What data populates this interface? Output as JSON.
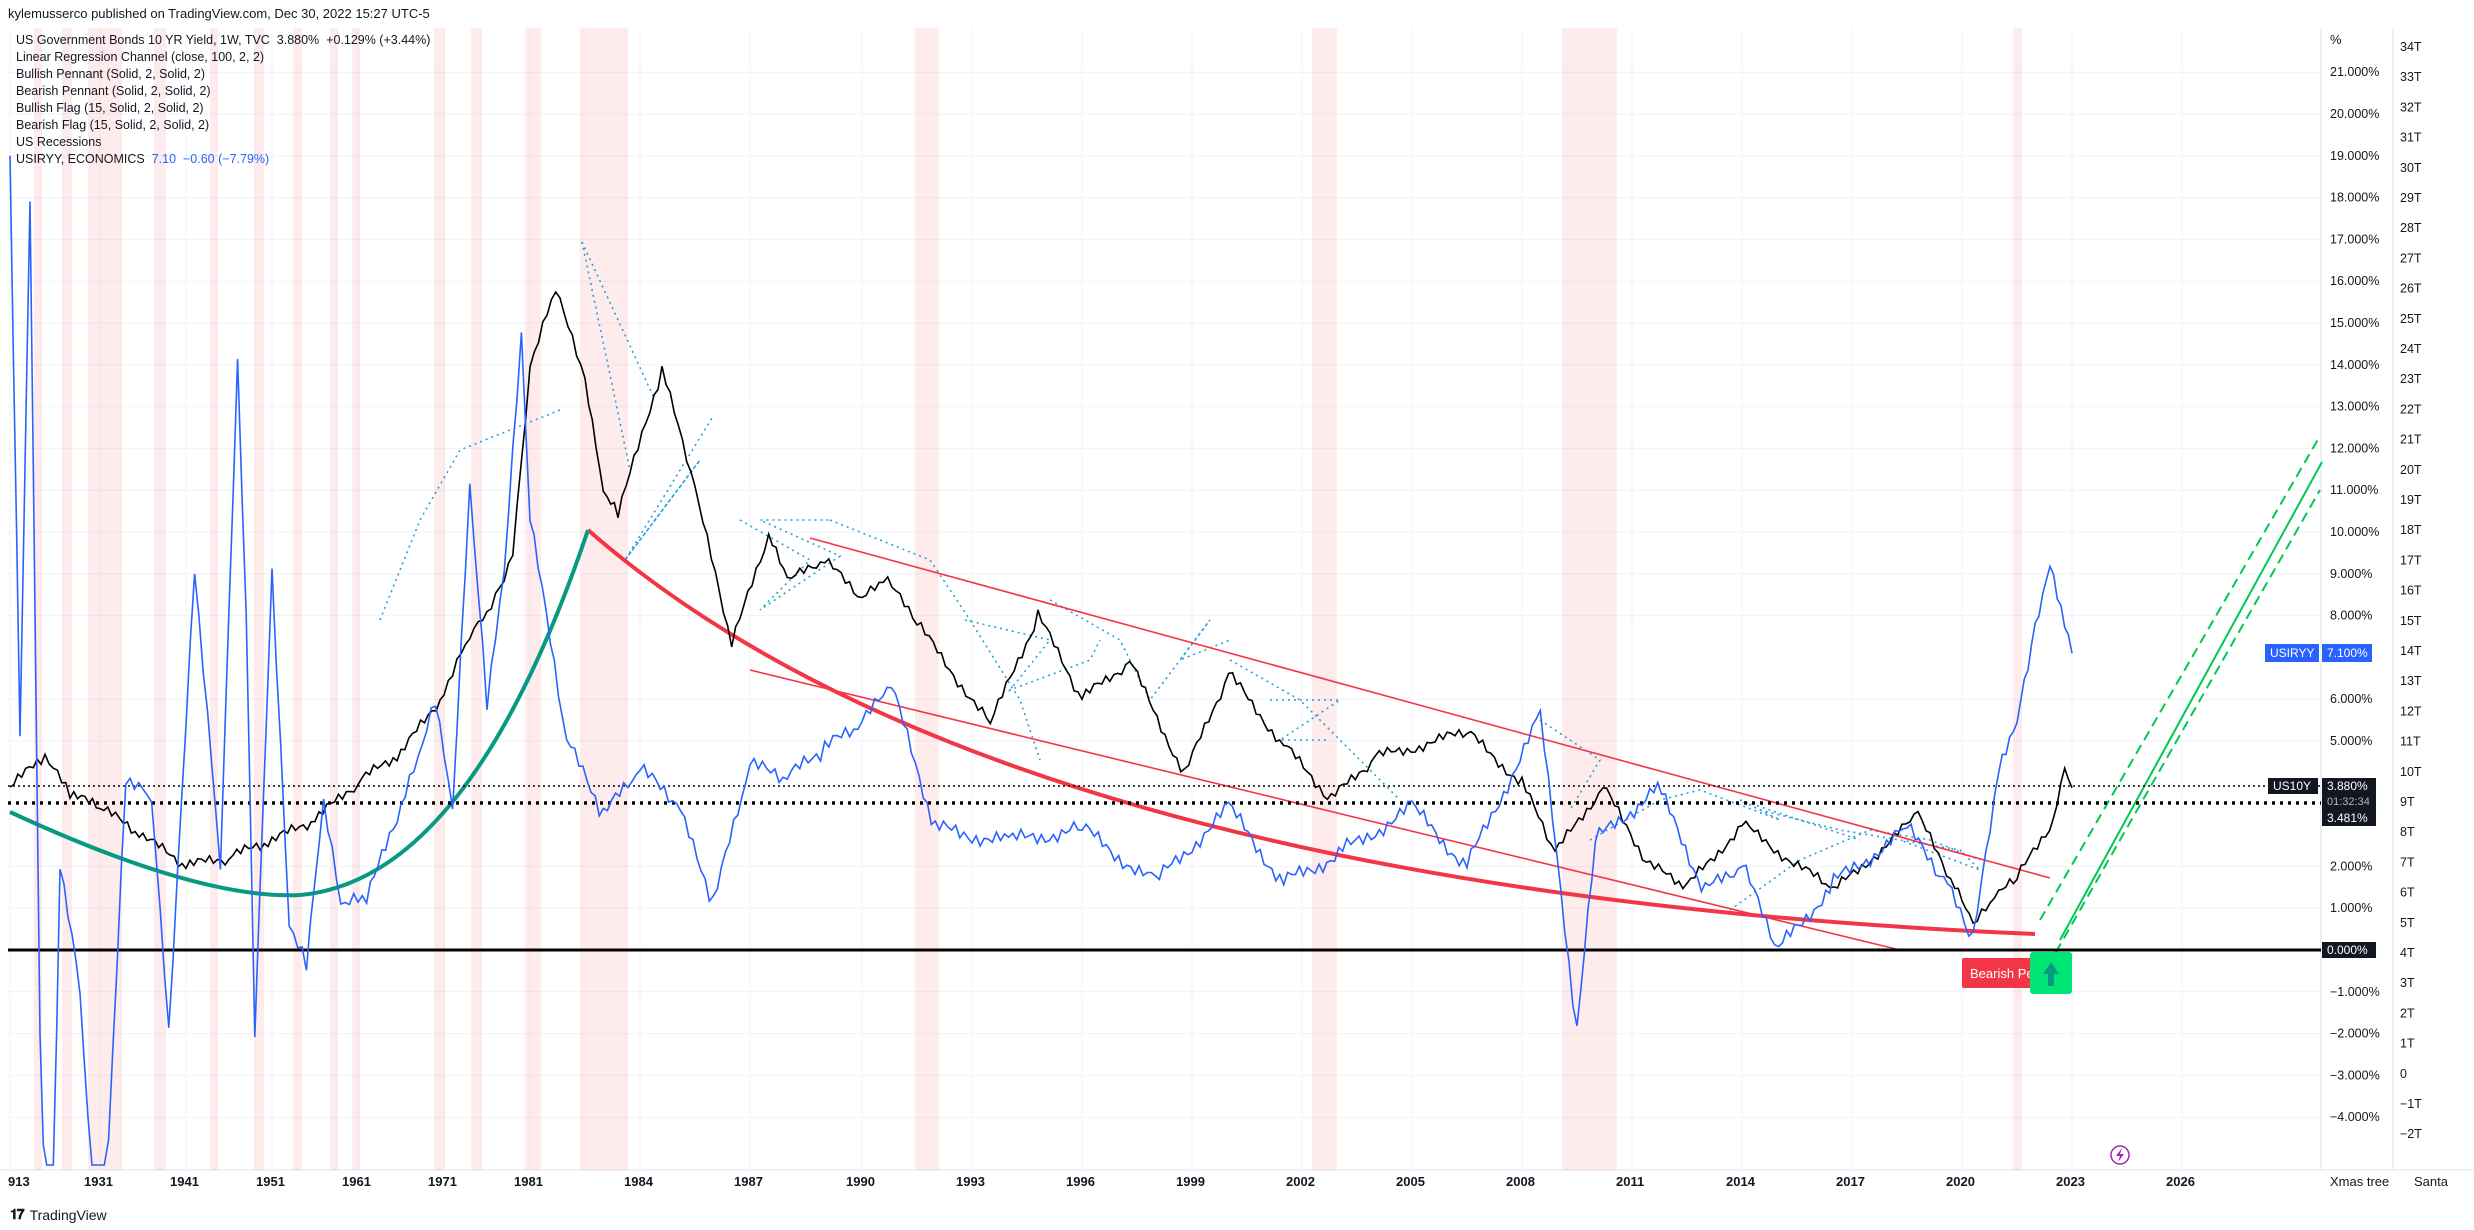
{
  "header": {
    "publisher": "kylemusserco published on TradingView.com, Dec 30, 2022 15:27 UTC-5"
  },
  "legend": {
    "main_symbol": "US Government Bonds 10 YR Yield, 1W, TVC",
    "main_value": "3.880%",
    "main_change": "+0.129% (+3.44%)",
    "indicators": [
      "Linear Regression Channel (close, 100, 2, 2)",
      "Bullish Pennant (Solid, 2, Solid, 2)",
      "Bearish Pennant (Solid, 2, Solid, 2)",
      "Bullish Flag (15, Solid, 2, Solid, 2)",
      "Bearish Flag (15, Solid, 2, Solid, 2)",
      "US Recessions"
    ],
    "compare_symbol": "USIRYY, ECONOMICS",
    "compare_value": "7.10",
    "compare_change": "−0.60 (−7.79%)"
  },
  "chart_data": {
    "type": "line",
    "x_axis_labels": [
      "913",
      "1931",
      "1941",
      "1951",
      "1961",
      "1971",
      "1981",
      "1984",
      "1987",
      "1990",
      "1993",
      "1996",
      "1999",
      "2002",
      "2005",
      "2008",
      "2011",
      "2014",
      "2017",
      "2020",
      "2023",
      "2026"
    ],
    "right_axis_unit": "%",
    "right_axis_labels": [
      "21.000%",
      "20.000%",
      "19.000%",
      "18.000%",
      "17.000%",
      "16.000%",
      "15.000%",
      "14.000%",
      "13.000%",
      "12.000%",
      "11.000%",
      "10.000%",
      "9.000%",
      "8.000%",
      "6.000%",
      "5.000%",
      "2.000%",
      "1.000%",
      "0.000%",
      "−1.000%",
      "−2.000%",
      "−3.000%",
      "−4.000%"
    ],
    "far_right_axis_labels": [
      "34T",
      "33T",
      "32T",
      "31T",
      "30T",
      "29T",
      "28T",
      "27T",
      "26T",
      "25T",
      "24T",
      "23T",
      "22T",
      "21T",
      "20T",
      "19T",
      "18T",
      "17T",
      "16T",
      "15T",
      "14T",
      "13T",
      "12T",
      "11T",
      "10T",
      "9T",
      "8T",
      "7T",
      "6T",
      "5T",
      "4T",
      "3T",
      "2T",
      "1T",
      "0",
      "−1T",
      "−2T"
    ],
    "price_tags": {
      "usiryy_label": "USIRYY",
      "usiryy_value": "7.100%",
      "us10y_label": "US10Y",
      "us10y_value": "3.880%",
      "countdown": "01:32:34",
      "dotted_level": "3.481%",
      "zero_level": "0.000%"
    },
    "series": [
      {
        "name": "US Government Bonds 10 YR Yield",
        "color": "#000000",
        "points": [
          [
            1913,
            3.9
          ],
          [
            1920,
            4.6
          ],
          [
            1925,
            3.7
          ],
          [
            1931,
            3.4
          ],
          [
            1936,
            2.7
          ],
          [
            1941,
            2.0
          ],
          [
            1946,
            2.2
          ],
          [
            1951,
            2.6
          ],
          [
            1956,
            3.1
          ],
          [
            1961,
            4.0
          ],
          [
            1966,
            4.7
          ],
          [
            1971,
            6.1
          ],
          [
            1974,
            7.5
          ],
          [
            1976,
            8.0
          ],
          [
            1978,
            8.8
          ],
          [
            1979,
            9.5
          ],
          [
            1980,
            11.6
          ],
          [
            1981,
            13.9
          ],
          [
            1981.7,
            15.8
          ],
          [
            1982.5,
            13.6
          ],
          [
            1983,
            10.9
          ],
          [
            1983.4,
            10.4
          ],
          [
            1984.6,
            13.9
          ],
          [
            1985.5,
            11.0
          ],
          [
            1986.5,
            7.3
          ],
          [
            1987.5,
            9.9
          ],
          [
            1988,
            8.8
          ],
          [
            1989,
            9.3
          ],
          [
            1990,
            8.4
          ],
          [
            1990.7,
            8.8
          ],
          [
            1991.5,
            7.8
          ],
          [
            1993.5,
            5.4
          ],
          [
            1994.8,
            8.0
          ],
          [
            1996,
            6.0
          ],
          [
            1997.3,
            6.9
          ],
          [
            1998.8,
            4.2
          ],
          [
            2000,
            6.6
          ],
          [
            2001.5,
            4.9
          ],
          [
            2002.8,
            3.6
          ],
          [
            2004,
            4.6
          ],
          [
            2006.5,
            5.2
          ],
          [
            2008,
            4.0
          ],
          [
            2008.9,
            2.3
          ],
          [
            2010.2,
            3.9
          ],
          [
            2011.5,
            2.0
          ],
          [
            2012.5,
            1.5
          ],
          [
            2014,
            3.0
          ],
          [
            2016.5,
            1.4
          ],
          [
            2018.8,
            3.2
          ],
          [
            2019.8,
            1.5
          ],
          [
            2020.3,
            0.55
          ],
          [
            2021,
            1.3
          ],
          [
            2021.5,
            1.7
          ],
          [
            2022.5,
            3.1
          ],
          [
            2022.8,
            4.2
          ],
          [
            2023,
            3.88
          ]
        ]
      },
      {
        "name": "USIRYY, ECONOMICS",
        "color": "#2962ff",
        "points": [
          [
            1913,
            19.0
          ],
          [
            1915,
            5.0
          ],
          [
            1917,
            18.0
          ],
          [
            1919,
            -2.0
          ],
          [
            1921,
            -10.0
          ],
          [
            1923,
            2.0
          ],
          [
            1927,
            -1.0
          ],
          [
            1931,
            -9.0
          ],
          [
            1934,
            4.0
          ],
          [
            1937,
            3.6
          ],
          [
            1939,
            -2.0
          ],
          [
            1942,
            9.0
          ],
          [
            1945,
            2.0
          ],
          [
            1947,
            14.0
          ],
          [
            1948,
            8.0
          ],
          [
            1949,
            -2.0
          ],
          [
            1951,
            9.0
          ],
          [
            1953,
            0.5
          ],
          [
            1955,
            -0.4
          ],
          [
            1957,
            3.5
          ],
          [
            1959,
            1.0
          ],
          [
            1962,
            1.2
          ],
          [
            1966,
            3.4
          ],
          [
            1968,
            4.5
          ],
          [
            1970,
            5.9
          ],
          [
            1972,
            3.3
          ],
          [
            1974,
            11.0
          ],
          [
            1976,
            5.8
          ],
          [
            1978,
            9.0
          ],
          [
            1980,
            14.6
          ],
          [
            1981,
            10.3
          ],
          [
            1982,
            5.0
          ],
          [
            1983,
            3.2
          ],
          [
            1984,
            4.3
          ],
          [
            1985,
            3.5
          ],
          [
            1986,
            1.1
          ],
          [
            1987,
            4.4
          ],
          [
            1988,
            4.1
          ],
          [
            1989,
            4.8
          ],
          [
            1990,
            5.4
          ],
          [
            1990.8,
            6.3
          ],
          [
            1992,
            2.9
          ],
          [
            1994,
            2.6
          ],
          [
            1996,
            2.9
          ],
          [
            1998,
            1.6
          ],
          [
            2000,
            3.4
          ],
          [
            2001.5,
            1.6
          ],
          [
            2003,
            2.3
          ],
          [
            2005,
            3.4
          ],
          [
            2006.5,
            2.0
          ],
          [
            2008.5,
            5.6
          ],
          [
            2009.5,
            -2.0
          ],
          [
            2010,
            2.6
          ],
          [
            2011.7,
            3.9
          ],
          [
            2013,
            1.4
          ],
          [
            2014,
            2.0
          ],
          [
            2015,
            0.0
          ],
          [
            2016.5,
            1.6
          ],
          [
            2018.5,
            2.9
          ],
          [
            2019.5,
            1.7
          ],
          [
            2020.3,
            0.2
          ],
          [
            2021,
            4.2
          ],
          [
            2021.5,
            5.4
          ],
          [
            2022,
            7.6
          ],
          [
            2022.4,
            9.1
          ],
          [
            2022.8,
            7.7
          ],
          [
            2023,
            7.1
          ]
        ]
      }
    ],
    "grid": true
  }
}
